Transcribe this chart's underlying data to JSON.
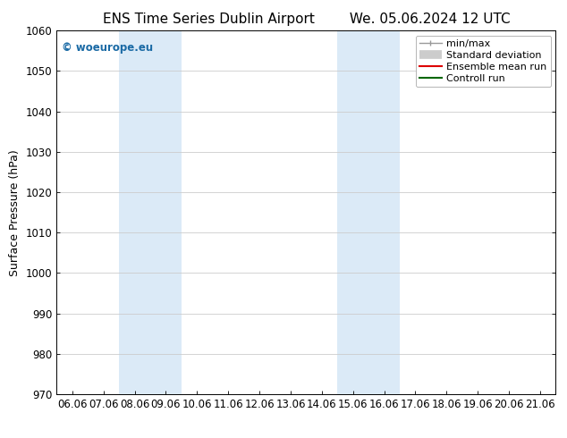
{
  "title_left": "ENS Time Series Dublin Airport",
  "title_right": "We. 05.06.2024 12 UTC",
  "ylabel": "Surface Pressure (hPa)",
  "ylim": [
    970,
    1060
  ],
  "yticks": [
    970,
    980,
    990,
    1000,
    1010,
    1020,
    1030,
    1040,
    1050,
    1060
  ],
  "xtick_labels": [
    "06.06",
    "07.06",
    "08.06",
    "09.06",
    "10.06",
    "11.06",
    "12.06",
    "13.06",
    "14.06",
    "15.06",
    "16.06",
    "17.06",
    "18.06",
    "19.06",
    "20.06",
    "21.06"
  ],
  "shaded_bands": [
    {
      "start": 2,
      "end": 4
    },
    {
      "start": 9,
      "end": 11
    }
  ],
  "shade_color": "#dbeaf7",
  "watermark_text": "© woeurope.eu",
  "watermark_color": "#1a6aa5",
  "legend_items": [
    {
      "label": "min/max",
      "color": "#999999",
      "lw": 1.0,
      "style": "minmax"
    },
    {
      "label": "Standard deviation",
      "color": "#cccccc",
      "lw": 7,
      "style": "thick"
    },
    {
      "label": "Ensemble mean run",
      "color": "#dd0000",
      "lw": 1.5,
      "style": "line"
    },
    {
      "label": "Controll run",
      "color": "#006600",
      "lw": 1.5,
      "style": "line"
    }
  ],
  "background_color": "#ffffff",
  "grid_color": "#cccccc",
  "title_fontsize": 11,
  "tick_fontsize": 8.5,
  "ylabel_fontsize": 9,
  "legend_fontsize": 8
}
